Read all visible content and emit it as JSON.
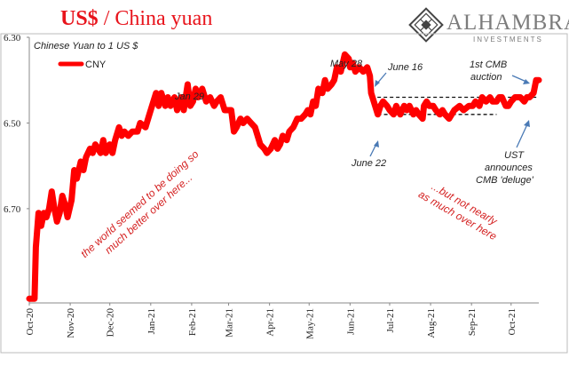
{
  "header": {
    "title_main": "US$",
    "title_rest": " / China yuan",
    "logo_name": "ALHAMBRA",
    "logo_sub": "INVESTMENTS"
  },
  "chart_data": {
    "type": "line",
    "subtitle": "Chinese Yuan to 1 US $",
    "y_inverted": true,
    "ylim": [
      6.3,
      6.92
    ],
    "yticks": [
      "6.30",
      "6.50",
      "6.70"
    ],
    "yticks_values": [
      6.3,
      6.5,
      6.7
    ],
    "xticks": [
      "Oct-20",
      "Nov-20",
      "Dec-20",
      "Jan-21",
      "Feb-21",
      "Mar-21",
      "Apr-21",
      "May-21",
      "Jun-21",
      "Jul-21",
      "Aug-21",
      "Sep-21",
      "Oct-21"
    ],
    "xticks_dates": [
      "2020-10-01",
      "2020-11-01",
      "2020-12-01",
      "2021-01-01",
      "2021-02-01",
      "2021-03-01",
      "2021-04-01",
      "2021-05-01",
      "2021-06-01",
      "2021-07-01",
      "2021-08-01",
      "2021-09-01",
      "2021-10-01"
    ],
    "xlim": [
      "2020-10-01",
      "2021-10-22"
    ],
    "legend": {
      "position": "top-left",
      "entries": [
        "CNY"
      ]
    },
    "series": [
      {
        "name": "CNY",
        "color": "#ff0000",
        "points": [
          [
            "2020-10-01",
            6.91
          ],
          [
            "2020-10-05",
            6.91
          ],
          [
            "2020-10-06",
            6.79
          ],
          [
            "2020-10-08",
            6.71
          ],
          [
            "2020-10-10",
            6.74
          ],
          [
            "2020-10-12",
            6.71
          ],
          [
            "2020-10-14",
            6.72
          ],
          [
            "2020-10-16",
            6.7
          ],
          [
            "2020-10-18",
            6.66
          ],
          [
            "2020-10-20",
            6.7
          ],
          [
            "2020-10-22",
            6.73
          ],
          [
            "2020-10-24",
            6.71
          ],
          [
            "2020-10-26",
            6.67
          ],
          [
            "2020-10-28",
            6.69
          ],
          [
            "2020-10-30",
            6.72
          ],
          [
            "2020-11-02",
            6.68
          ],
          [
            "2020-11-04",
            6.61
          ],
          [
            "2020-11-06",
            6.63
          ],
          [
            "2020-11-09",
            6.59
          ],
          [
            "2020-11-11",
            6.61
          ],
          [
            "2020-11-13",
            6.58
          ],
          [
            "2020-11-16",
            6.56
          ],
          [
            "2020-11-18",
            6.57
          ],
          [
            "2020-11-20",
            6.55
          ],
          [
            "2020-11-24",
            6.57
          ],
          [
            "2020-11-26",
            6.54
          ],
          [
            "2020-11-28",
            6.57
          ],
          [
            "2020-12-01",
            6.55
          ],
          [
            "2020-12-03",
            6.57
          ],
          [
            "2020-12-05",
            6.54
          ],
          [
            "2020-12-08",
            6.51
          ],
          [
            "2020-12-10",
            6.53
          ],
          [
            "2020-12-12",
            6.52
          ],
          [
            "2020-12-15",
            6.53
          ],
          [
            "2020-12-18",
            6.52
          ],
          [
            "2020-12-22",
            6.52
          ],
          [
            "2020-12-24",
            6.5
          ],
          [
            "2020-12-28",
            6.51
          ],
          [
            "2020-12-31",
            6.48
          ],
          [
            "2021-01-03",
            6.45
          ],
          [
            "2021-01-05",
            6.43
          ],
          [
            "2021-01-07",
            6.46
          ],
          [
            "2021-01-09",
            6.43
          ],
          [
            "2021-01-12",
            6.46
          ],
          [
            "2021-01-14",
            6.44
          ],
          [
            "2021-01-16",
            6.46
          ],
          [
            "2021-01-19",
            6.44
          ],
          [
            "2021-01-21",
            6.47
          ],
          [
            "2021-01-24",
            6.44
          ],
          [
            "2021-01-26",
            6.47
          ],
          [
            "2021-01-29",
            6.41
          ],
          [
            "2021-01-31",
            6.46
          ],
          [
            "2021-02-02",
            6.45
          ],
          [
            "2021-02-04",
            6.42
          ],
          [
            "2021-02-06",
            6.44
          ],
          [
            "2021-02-09",
            6.42
          ],
          [
            "2021-02-12",
            6.45
          ],
          [
            "2021-02-15",
            6.44
          ],
          [
            "2021-02-18",
            6.46
          ],
          [
            "2021-02-20",
            6.45
          ],
          [
            "2021-02-23",
            6.44
          ],
          [
            "2021-02-26",
            6.47
          ],
          [
            "2021-02-28",
            6.47
          ],
          [
            "2021-03-03",
            6.47
          ],
          [
            "2021-03-05",
            6.52
          ],
          [
            "2021-03-07",
            6.51
          ],
          [
            "2021-03-10",
            6.49
          ],
          [
            "2021-03-12",
            6.5
          ],
          [
            "2021-03-15",
            6.49
          ],
          [
            "2021-03-18",
            6.5
          ],
          [
            "2021-03-21",
            6.51
          ],
          [
            "2021-03-25",
            6.55
          ],
          [
            "2021-03-28",
            6.56
          ],
          [
            "2021-03-30",
            6.57
          ],
          [
            "2021-04-02",
            6.56
          ],
          [
            "2021-04-05",
            6.54
          ],
          [
            "2021-04-07",
            6.56
          ],
          [
            "2021-04-09",
            6.55
          ],
          [
            "2021-04-11",
            6.53
          ],
          [
            "2021-04-14",
            6.54
          ],
          [
            "2021-04-16",
            6.52
          ],
          [
            "2021-04-19",
            6.51
          ],
          [
            "2021-04-22",
            6.49
          ],
          [
            "2021-04-25",
            6.49
          ],
          [
            "2021-04-28",
            6.48
          ],
          [
            "2021-04-30",
            6.47
          ],
          [
            "2021-05-02",
            6.48
          ],
          [
            "2021-05-04",
            6.45
          ],
          [
            "2021-05-06",
            6.46
          ],
          [
            "2021-05-08",
            6.42
          ],
          [
            "2021-05-11",
            6.43
          ],
          [
            "2021-05-13",
            6.4
          ],
          [
            "2021-05-15",
            6.42
          ],
          [
            "2021-05-18",
            6.41
          ],
          [
            "2021-05-20",
            6.4
          ],
          [
            "2021-05-22",
            6.37
          ],
          [
            "2021-05-25",
            6.38
          ],
          [
            "2021-05-28",
            6.34
          ],
          [
            "2021-05-31",
            6.35
          ],
          [
            "2021-06-01",
            6.37
          ],
          [
            "2021-06-03",
            6.36
          ],
          [
            "2021-06-05",
            6.38
          ],
          [
            "2021-06-08",
            6.37
          ],
          [
            "2021-06-11",
            6.38
          ],
          [
            "2021-06-14",
            6.37
          ],
          [
            "2021-06-16",
            6.39
          ],
          [
            "2021-06-17",
            6.43
          ],
          [
            "2021-06-19",
            6.45
          ],
          [
            "2021-06-22",
            6.48
          ],
          [
            "2021-06-24",
            6.46
          ],
          [
            "2021-06-26",
            6.45
          ],
          [
            "2021-06-29",
            6.46
          ],
          [
            "2021-07-01",
            6.47
          ],
          [
            "2021-07-04",
            6.48
          ],
          [
            "2021-07-06",
            6.46
          ],
          [
            "2021-07-09",
            6.48
          ],
          [
            "2021-07-12",
            6.46
          ],
          [
            "2021-07-14",
            6.47
          ],
          [
            "2021-07-16",
            6.46
          ],
          [
            "2021-07-19",
            6.48
          ],
          [
            "2021-07-21",
            6.47
          ],
          [
            "2021-07-23",
            6.48
          ],
          [
            "2021-07-26",
            6.49
          ],
          [
            "2021-07-27",
            6.46
          ],
          [
            "2021-07-29",
            6.45
          ],
          [
            "2021-07-31",
            6.46
          ],
          [
            "2021-08-03",
            6.46
          ],
          [
            "2021-08-05",
            6.47
          ],
          [
            "2021-08-08",
            6.48
          ],
          [
            "2021-08-10",
            6.47
          ],
          [
            "2021-08-12",
            6.48
          ],
          [
            "2021-08-15",
            6.49
          ],
          [
            "2021-08-17",
            6.48
          ],
          [
            "2021-08-19",
            6.47
          ],
          [
            "2021-08-23",
            6.46
          ],
          [
            "2021-08-26",
            6.47
          ],
          [
            "2021-08-30",
            6.46
          ],
          [
            "2021-09-02",
            6.46
          ],
          [
            "2021-09-04",
            6.45
          ],
          [
            "2021-09-07",
            6.46
          ],
          [
            "2021-09-09",
            6.44
          ],
          [
            "2021-09-12",
            6.45
          ],
          [
            "2021-09-15",
            6.44
          ],
          [
            "2021-09-17",
            6.45
          ],
          [
            "2021-09-20",
            6.45
          ],
          [
            "2021-09-22",
            6.44
          ],
          [
            "2021-09-24",
            6.44
          ],
          [
            "2021-09-27",
            6.46
          ],
          [
            "2021-09-29",
            6.46
          ],
          [
            "2021-10-01",
            6.45
          ],
          [
            "2021-10-04",
            6.44
          ],
          [
            "2021-10-06",
            6.44
          ],
          [
            "2021-10-08",
            6.44
          ],
          [
            "2021-10-11",
            6.45
          ],
          [
            "2021-10-13",
            6.44
          ],
          [
            "2021-10-15",
            6.44
          ],
          [
            "2021-10-18",
            6.43
          ],
          [
            "2021-10-20",
            6.4
          ],
          [
            "2021-10-22",
            6.4
          ]
        ]
      }
    ],
    "reference_lines": [
      {
        "style": "dashed",
        "y": 6.44,
        "x_from": "2021-06-17",
        "x_to": "2021-10-22"
      },
      {
        "style": "dashed",
        "y": 6.48,
        "x_from": "2021-06-22",
        "x_to": "2021-09-20"
      }
    ],
    "annotations": [
      {
        "text": "Jan 29",
        "style": "plain",
        "anchor": "peak"
      },
      {
        "text": "May 28",
        "style": "plain",
        "anchor": "peak"
      },
      {
        "text": "June 16",
        "style": "arrow",
        "anchor": "2021-06-16"
      },
      {
        "text": "June 22",
        "style": "arrow",
        "anchor": "2021-06-22"
      },
      {
        "lines": [
          "1st CMB",
          "auction"
        ],
        "style": "arrow",
        "anchor": "2021-10-20"
      },
      {
        "lines": [
          "UST",
          "announces",
          "CMB 'deluge'"
        ],
        "style": "arrow",
        "anchor": "2021-10-15"
      },
      {
        "lines": [
          "the world seemed to be doing so",
          "much better over here..."
        ],
        "style": "red-italic-rotated"
      },
      {
        "lines": [
          "...but not nearly",
          "as much over here"
        ],
        "style": "red-italic-rotated"
      }
    ]
  },
  "colors": {
    "line": "#ff0000",
    "title": "#e8141c",
    "annotation_red": "#d42020",
    "arrow": "#4a7ab5",
    "axis": "#888888"
  }
}
